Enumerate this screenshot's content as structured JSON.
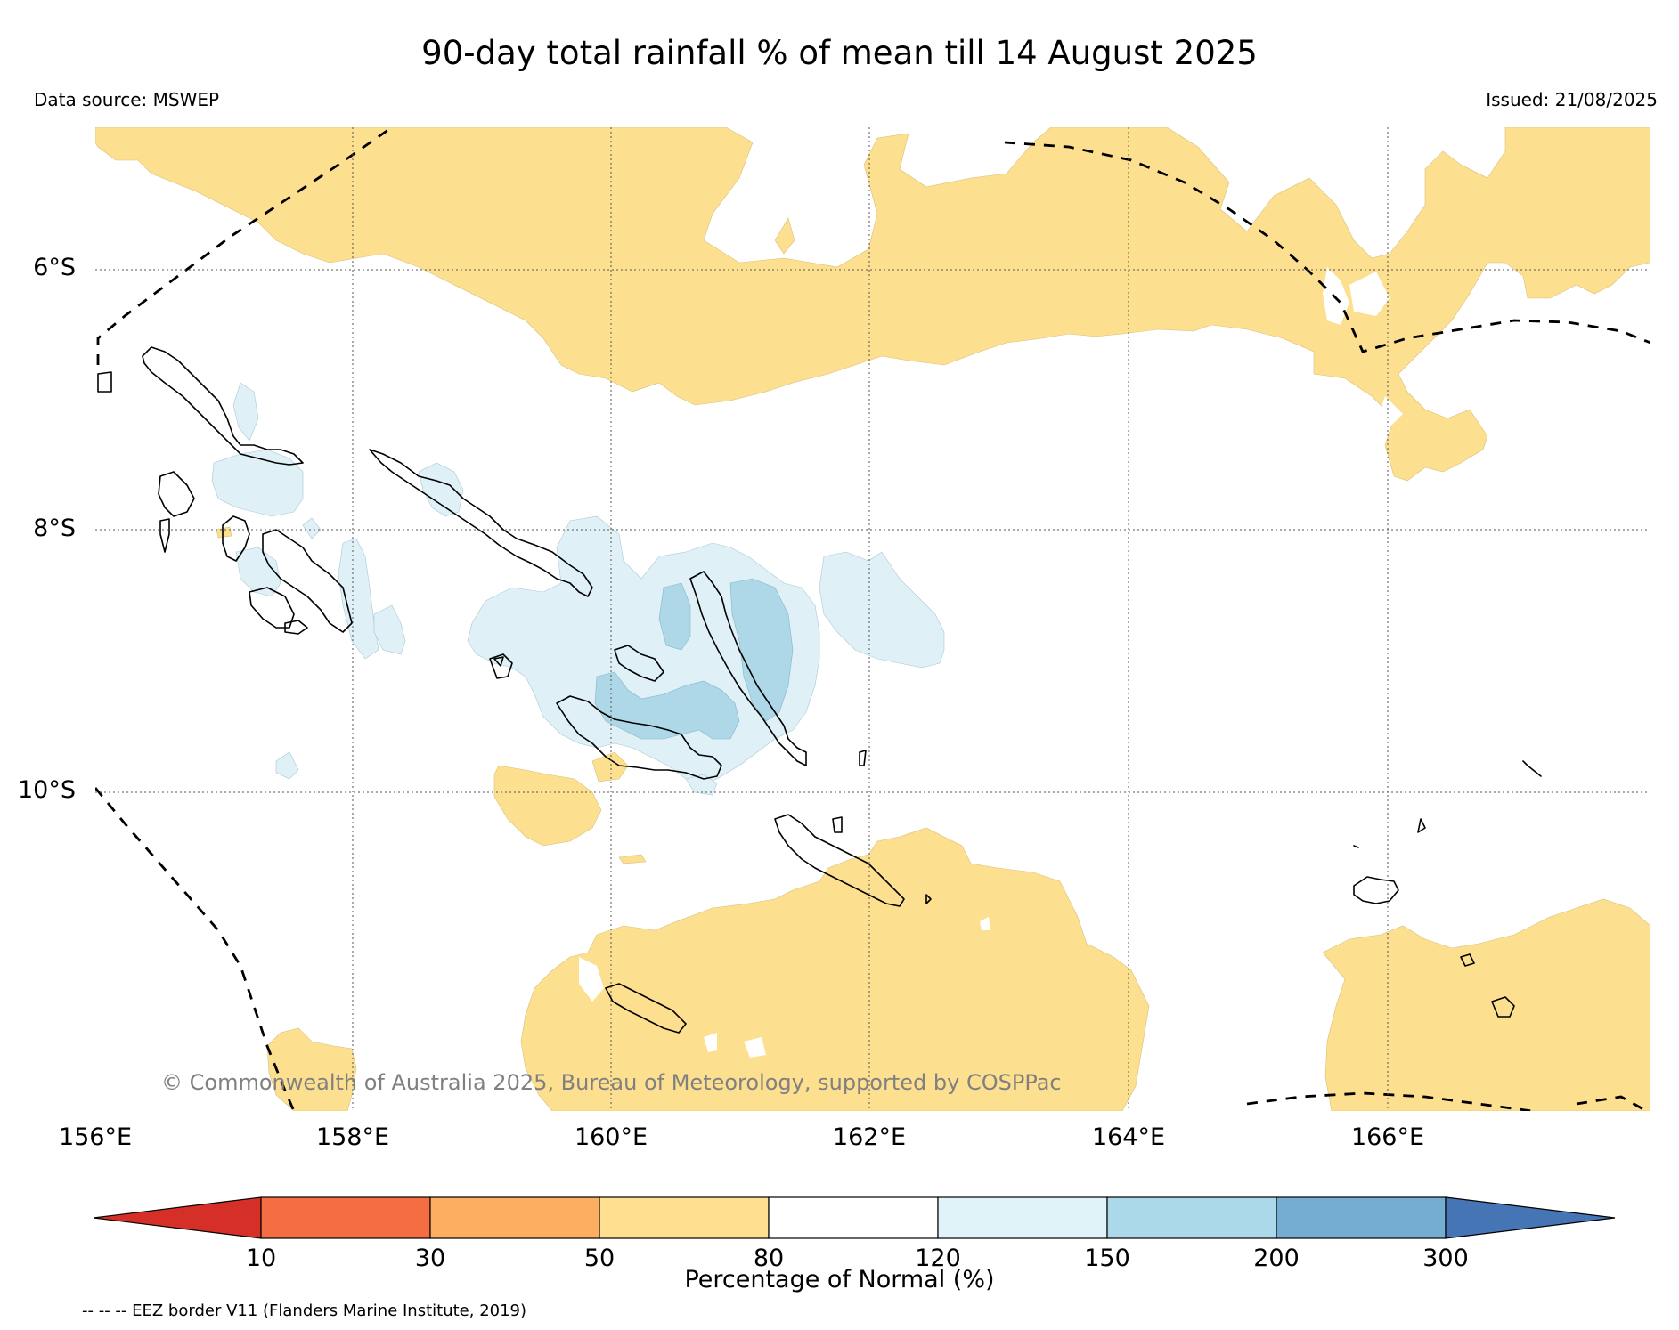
{
  "header": {
    "title": "90-day total rainfall % of mean till 14 August 2025",
    "data_source": "Data source: MSWEP",
    "issued": "Issued: 21/08/2025"
  },
  "map": {
    "lat_labels": [
      "6°S",
      "8°S",
      "10°S"
    ],
    "lon_labels": [
      "156°E",
      "158°E",
      "160°E",
      "162°E",
      "164°E",
      "166°E"
    ],
    "copyright": "© Commonwealth of Australia 2025, Bureau of Meteorology, supported by COSPPac",
    "colors": {
      "dry_50_80": "#fddf90",
      "wet_120_150": "#dff0f7",
      "wet_150_200": "#aed8e8",
      "coast": "#000000",
      "eez": "#000000",
      "grid": "#555555"
    }
  },
  "colorbar": {
    "title": "Percentage of Normal (%)",
    "ticks": [
      "10",
      "30",
      "50",
      "80",
      "120",
      "150",
      "200",
      "300"
    ],
    "colors": [
      "#d62f27",
      "#f46d43",
      "#fdae61",
      "#fee090",
      "#ffffff",
      "#e0f3f8",
      "#abd9e9",
      "#74add1",
      "#4575b4"
    ]
  },
  "legend": {
    "eez_note": "-- -- -- EEZ border V11 (Flanders Marine Institute, 2019)"
  }
}
